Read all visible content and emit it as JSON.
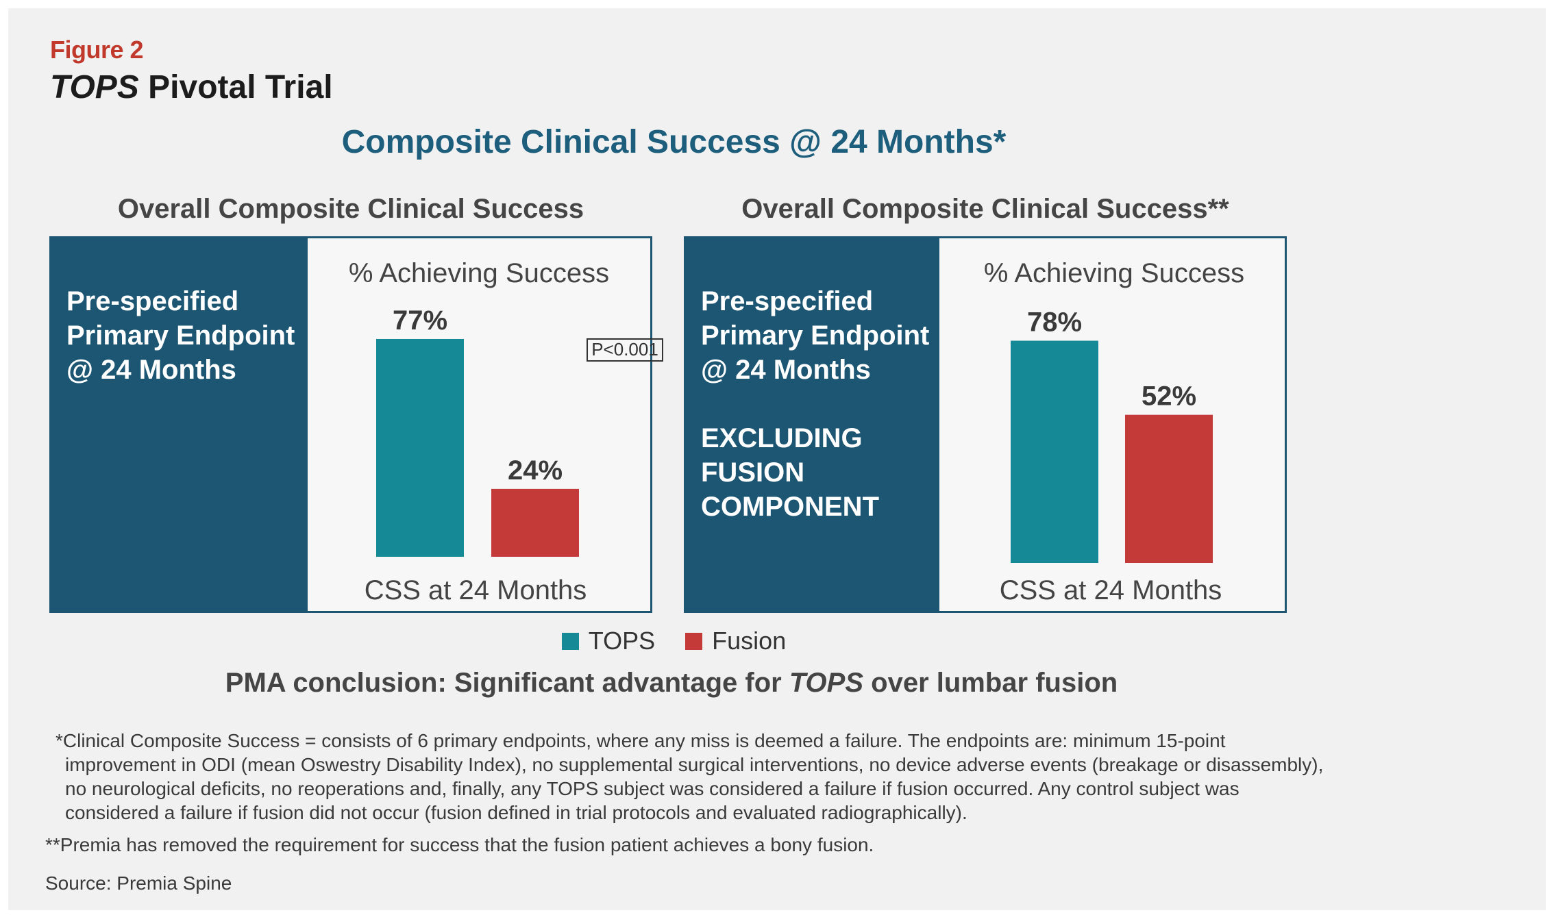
{
  "figure": {
    "label": "Figure 2",
    "title_italic": "TOPS",
    "title_rest": " Pivotal Trial"
  },
  "main_title": "Composite Clinical Success @ 24 Months*",
  "colors": {
    "tops": "#158a96",
    "fusion": "#c43a38",
    "side_panel": "#1c5673",
    "title_blue": "#1d5e7d",
    "figure_label_red": "#c0392b"
  },
  "chart_data": [
    {
      "type": "bar",
      "heading": "Overall Composite Clinical Success",
      "side_text": [
        "Pre-specified",
        "Primary Endpoint",
        "@ 24 Months"
      ],
      "side_extra": [],
      "ylabel": "% Achieving Success",
      "xlabel": "CSS at 24 Months",
      "series": [
        {
          "name": "TOPS",
          "value": 77,
          "label": "77%"
        },
        {
          "name": "Fusion",
          "value": 24,
          "label": "24%"
        }
      ],
      "annotation": "P<0.001",
      "ylim": [
        0,
        100
      ],
      "grid": false
    },
    {
      "type": "bar",
      "heading": "Overall Composite Clinical Success**",
      "side_text": [
        "Pre-specified",
        "Primary Endpoint",
        "@ 24 Months"
      ],
      "side_extra": [
        "EXCLUDING",
        "FUSION",
        "COMPONENT"
      ],
      "ylabel": "% Achieving Success",
      "xlabel": "CSS at 24 Months",
      "series": [
        {
          "name": "TOPS",
          "value": 78,
          "label": "78%"
        },
        {
          "name": "Fusion",
          "value": 52,
          "label": "52%"
        }
      ],
      "annotation": "",
      "ylim": [
        0,
        100
      ],
      "grid": false
    }
  ],
  "legend": [
    {
      "label": "TOPS",
      "color": "#158a96"
    },
    {
      "label": "Fusion",
      "color": "#c43a38"
    }
  ],
  "conclusion": {
    "before": "PMA conclusion: Significant advantage for ",
    "italic": "TOPS",
    "after": " over lumbar fusion"
  },
  "footnotes": {
    "star": [
      "*Clinical Composite Success = consists of 6 primary endpoints, where any miss is deemed a failure. The endpoints are: minimum 15-point",
      "improvement in ODI (mean Oswestry Disability Index), no supplemental surgical interventions, no device adverse events (breakage or disassembly),",
      "no neurological deficits, no reoperations and, finally, any TOPS subject was considered a failure if fusion occurred. Any control subject was",
      "considered a failure if fusion did not occur (fusion defined in trial protocols and evaluated radiographically)."
    ],
    "double_star": "**Premia has removed the requirement for success that the fusion patient achieves a bony fusion.",
    "source": "Source: Premia Spine"
  }
}
